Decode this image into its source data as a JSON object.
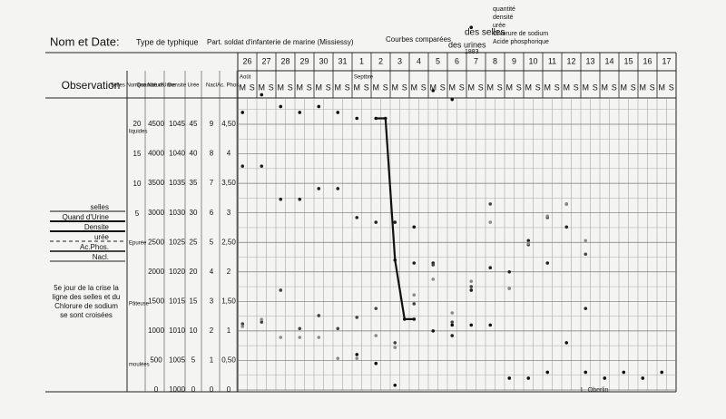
{
  "chart_data": {
    "type": "line",
    "title": "Nom et Date:",
    "subtitle": "Type de typhique",
    "patient": "Part. soldat d'infanterie de marine (Missiessy)",
    "heading": [
      "Courbes comparées",
      "des selles",
      "des urines",
      "1883"
    ],
    "urine_list": [
      "quantité",
      "densité",
      "urée",
      "Chlorure de sodium",
      "Acide phosphorique"
    ],
    "row_label": "Observation",
    "days": [
      "26",
      "27",
      "28",
      "29",
      "30",
      "31",
      "1",
      "2",
      "3",
      "4",
      "5",
      "6",
      "7",
      "8",
      "9",
      "10",
      "11",
      "12",
      "13",
      "14",
      "15",
      "16",
      "17"
    ],
    "months": [
      "Août",
      null,
      null,
      null,
      null,
      null,
      "Septbre",
      null,
      null,
      null,
      null,
      null,
      null,
      null,
      null,
      null,
      null,
      null,
      null,
      null,
      null,
      null,
      null
    ],
    "halves": [
      "M",
      "S"
    ],
    "selles_nature": [
      "liquides",
      "Epurée",
      "Pâteuse",
      "moulées"
    ],
    "crisis_note": [
      "5e jour de la crise la",
      "ligne des selles et du",
      "Chlorure de sodium",
      "se sont croisées"
    ],
    "footer": "L. Oberlin.",
    "grid": true,
    "axes": [
      {
        "name": "Selles Nombre Nature",
        "ylim": [
          -24.4,
          20
        ],
        "yticks": [
          20,
          15,
          10,
          5
        ]
      },
      {
        "name": "Quantité d'Urine",
        "ylim": [
          0,
          4500
        ],
        "yticks": [
          4500,
          4000,
          3500,
          3000,
          2500,
          2000,
          1500,
          1000,
          500,
          0
        ]
      },
      {
        "name": "Densité",
        "ylim": [
          1000,
          1045
        ],
        "yticks": [
          1045,
          1040,
          1035,
          1030,
          1025,
          1020,
          1015,
          1010,
          1005,
          1000
        ]
      },
      {
        "name": "Urée",
        "ylim": [
          0,
          45
        ],
        "yticks": [
          45,
          40,
          35,
          30,
          25,
          20,
          15,
          10,
          5,
          0
        ]
      },
      {
        "name": "Nacl",
        "ylim": [
          0,
          9
        ],
        "yticks": [
          9,
          8,
          7,
          6,
          5,
          4,
          3,
          2,
          1,
          0
        ]
      },
      {
        "name": "Ac. Phos.",
        "ylim": [
          0,
          4.5
        ],
        "yticks": [
          {
            "value": 4.5,
            "label": "4,50"
          },
          4,
          {
            "value": 3.5,
            "label": "3,50"
          },
          3,
          {
            "value": 2.5,
            "label": "2,50"
          },
          2,
          {
            "value": 1.5,
            "label": "1,50"
          },
          1,
          {
            "value": 0.5,
            "label": "0,50"
          },
          0
        ]
      }
    ],
    "series": [
      {
        "name": "selles",
        "color": "#111111",
        "style": "solid",
        "axis": 0,
        "values": [
          null,
          null,
          null,
          null,
          null,
          null,
          null,
          null,
          null,
          null,
          null,
          null,
          null,
          null,
          null,
          null,
          null,
          null,
          null,
          null,
          null,
          null,
          null,
          null,
          null,
          null,
          null,
          null,
          null,
          null,
          null,
          null,
          null,
          null,
          null,
          null,
          null,
          null,
          null,
          null,
          null,
          null,
          null,
          null,
          null,
          null
        ]
      },
      {
        "name": "Quand d'Urine",
        "color": "#111111",
        "style": "thick",
        "axis": 1,
        "values": [
          null,
          null,
          null,
          null,
          null,
          null,
          null,
          null,
          null,
          null,
          null,
          null,
          600,
          null,
          450,
          null,
          80,
          null,
          2760,
          null,
          5070,
          null,
          4920,
          null,
          6140,
          null,
          null,
          null,
          null,
          null,
          null,
          null,
          null,
          null,
          null,
          null,
          null,
          null,
          null,
          null,
          null,
          null,
          null,
          null,
          null,
          null
        ]
      },
      {
        "name": "Densite",
        "color": "#111111",
        "style": "thick",
        "axis": 2,
        "values": [
          1047,
          null,
          1050,
          null,
          1048,
          null,
          1047,
          null,
          1048,
          null,
          1047,
          null,
          1046,
          null,
          1046,
          1046,
          1022,
          1012,
          1012,
          null,
          1010,
          null,
          1011,
          null,
          1011,
          null,
          1011,
          null,
          1002,
          null,
          1002,
          null,
          1003,
          null,
          1008,
          null,
          1003,
          null,
          1002,
          null,
          1003,
          null,
          1002,
          null,
          1003,
          null
        ]
      },
      {
        "name": "urée",
        "color": "#222222",
        "style": "dashed",
        "axis": 3,
        "values": [
          37.9,
          null,
          37.9,
          null,
          32.3,
          null,
          32.3,
          null,
          34.1,
          null,
          34.1,
          null,
          29.2,
          null,
          28.4,
          null,
          28.4,
          null,
          21.5,
          null,
          21.5,
          null,
          9.2,
          null,
          16.9,
          null,
          20.7,
          null,
          20.0,
          null,
          25.3,
          null,
          21.5,
          null,
          27.6,
          null,
          13.8,
          null,
          null,
          null,
          null,
          null,
          null,
          null,
          null,
          null
        ]
      },
      {
        "name": "Ac.Phos.",
        "color": "#444444",
        "style": "double",
        "axis": 5,
        "values": [
          1.12,
          null,
          1.15,
          null,
          1.69,
          null,
          1.04,
          null,
          1.26,
          null,
          1.04,
          null,
          1.23,
          null,
          1.38,
          null,
          0.8,
          null,
          1.46,
          null,
          2.12,
          null,
          1.15,
          null,
          1.75,
          null,
          3.15,
          null,
          1.72,
          null,
          2.46,
          null,
          2.92,
          null,
          3.15,
          null,
          2.3,
          null,
          null,
          null,
          null,
          null,
          null,
          null,
          null,
          null
        ]
      },
      {
        "name": "Nacl.",
        "color": "#8a8a8a",
        "style": "gray",
        "axis": 4,
        "values": [
          2.15,
          null,
          2.39,
          null,
          1.78,
          null,
          1.78,
          null,
          1.78,
          null,
          1.07,
          null,
          1.07,
          null,
          1.84,
          null,
          1.44,
          null,
          3.22,
          null,
          3.75,
          null,
          2.61,
          null,
          3.68,
          null,
          5.68,
          null,
          3.44,
          null,
          4.97,
          null,
          5.89,
          null,
          6.29,
          null,
          5.06,
          null,
          null,
          null,
          null,
          null,
          null,
          null,
          null,
          null
        ]
      }
    ]
  }
}
